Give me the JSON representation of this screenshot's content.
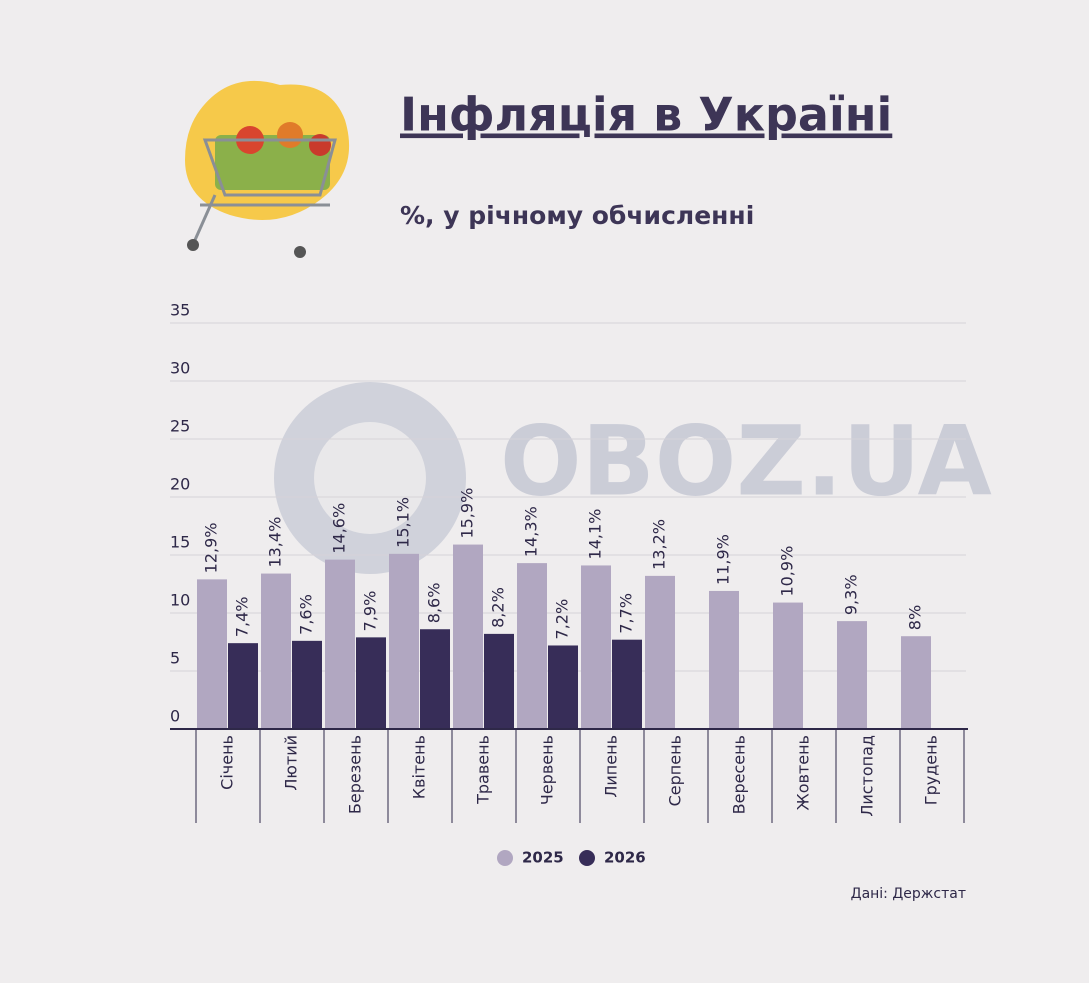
{
  "chart_data": {
    "type": "bar",
    "title": "Інфляція в Україні",
    "subtitle": "%, у річному обчисленні",
    "watermark": "OBOZ.UA",
    "source": "Дані: Держстат",
    "categories": [
      "Січень",
      "Лютий",
      "Березень",
      "Квітень",
      "Травень",
      "Червень",
      "Липень",
      "Серпень",
      "Вересень",
      "Жовтень",
      "Листопад",
      "Грудень"
    ],
    "series": [
      {
        "name": "2025",
        "color": "#b1a7c1",
        "values": [
          12.9,
          13.4,
          14.6,
          15.1,
          15.9,
          14.3,
          14.1,
          13.2,
          11.9,
          10.9,
          9.3,
          8
        ],
        "value_labels": [
          "12,9%",
          "13,4%",
          "14,6%",
          "15,1%",
          "15,9%",
          "14,3%",
          "14,1%",
          "13,2%",
          "11,9%",
          "10,9%",
          "9,3%",
          "8%"
        ]
      },
      {
        "name": "2026",
        "color": "#372d58",
        "values": [
          7.4,
          7.6,
          7.9,
          8.6,
          8.2,
          7.2,
          7.7,
          null,
          null,
          null,
          null,
          null
        ],
        "value_labels": [
          "7,4%",
          "7,6%",
          "7,9%",
          "8,6%",
          "8,2%",
          "7,2%",
          "7,7%",
          null,
          null,
          null,
          null,
          null
        ]
      }
    ],
    "ylim": [
      0,
      35
    ],
    "yticks": [
      0,
      5,
      10,
      15,
      20,
      25,
      30,
      35
    ],
    "grid": true
  }
}
